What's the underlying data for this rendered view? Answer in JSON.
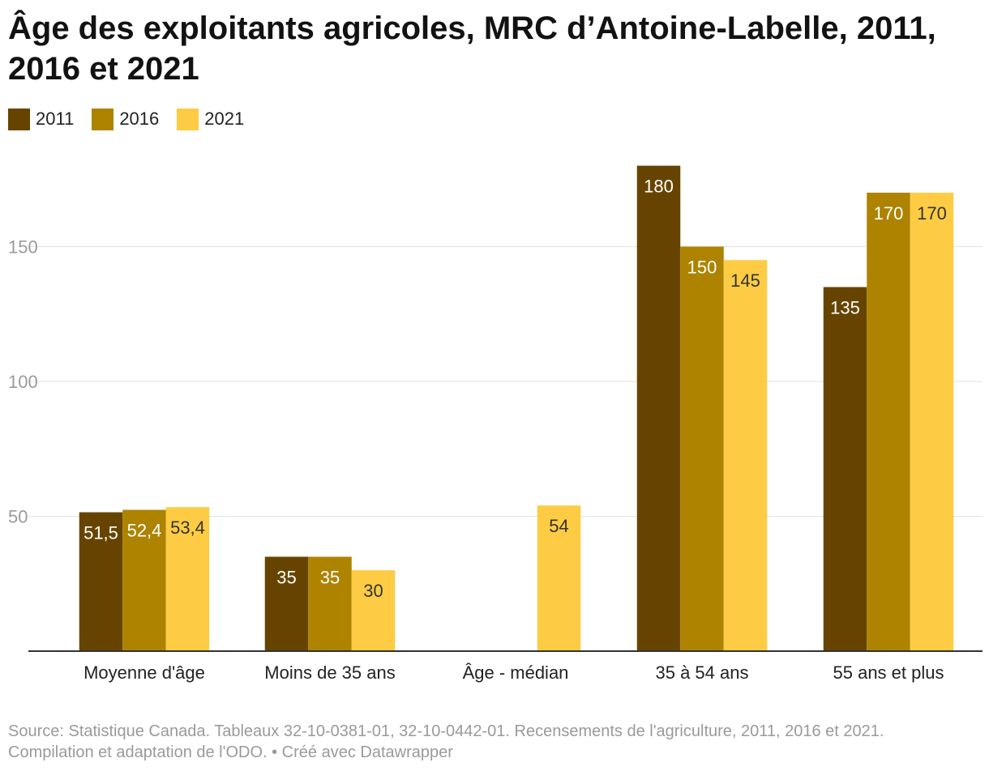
{
  "chart_data": {
    "type": "bar",
    "title": "Âge des exploitants agricoles, MRC d’Antoine-Labelle, 2011, 2016 et 2021",
    "categories": [
      "Moyenne d'âge",
      "Moins de 35 ans",
      "Âge - médian",
      "35 à 54 ans",
      "55 ans et plus"
    ],
    "series": [
      {
        "name": "2011",
        "color": "#664400",
        "label_color": "#ffffff",
        "values": [
          51.5,
          35,
          null,
          180,
          135
        ],
        "labels": [
          "51,5",
          "35",
          "",
          "180",
          "135"
        ]
      },
      {
        "name": "2016",
        "color": "#ad8300",
        "label_color": "#ffffff",
        "values": [
          52.4,
          35,
          null,
          150,
          170
        ],
        "labels": [
          "52,4",
          "35",
          "",
          "150",
          "170"
        ]
      },
      {
        "name": "2021",
        "color": "#fdcc44",
        "label_color": "#333333",
        "values": [
          53.4,
          30,
          54,
          145,
          170
        ],
        "labels": [
          "53,4",
          "30",
          "54",
          "145",
          "170"
        ]
      }
    ],
    "yticks": [
      50,
      100,
      150
    ],
    "ylim": [
      0,
      180
    ],
    "grid": true,
    "xlabel": "",
    "ylabel": "",
    "legend_position": "top-left"
  },
  "footer": {
    "source": "Source: Statistique Canada. Tableaux 32-10-0381-01, 32-10-0442-01. Recensements de l'agriculture, 2011, 2016 et 2021.",
    "credit": "Compilation et adaptation de l'ODO. • Créé avec Datawrapper"
  }
}
